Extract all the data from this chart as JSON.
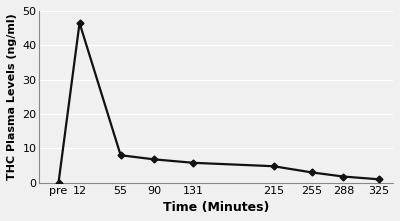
{
  "x_labels": [
    "pre",
    "12",
    "55",
    "90",
    "131",
    "215",
    "255",
    "288",
    "325"
  ],
  "x_numeric": [
    -10,
    12,
    55,
    90,
    131,
    215,
    255,
    288,
    325
  ],
  "y_values": [
    0,
    46.5,
    8.0,
    6.8,
    5.8,
    4.8,
    3.0,
    1.8,
    1.0
  ],
  "xlabel": "Time (Minutes)",
  "ylabel": "THC Plasma Levels (ng/ml)",
  "ylim": [
    0,
    50
  ],
  "yticks": [
    0,
    10,
    20,
    30,
    40,
    50
  ],
  "xlim": [
    -30,
    340
  ],
  "line_color": "#111111",
  "marker": "D",
  "marker_size": 3.5,
  "marker_color": "#111111",
  "line_width": 1.6,
  "background_color": "#f0f0f0",
  "plot_bg_color": "#f0f0f0",
  "grid_color": "#ffffff",
  "xlabel_fontsize": 9,
  "ylabel_fontsize": 8,
  "tick_fontsize": 8,
  "xlabel_fontweight": "bold",
  "ylabel_fontweight": "bold"
}
